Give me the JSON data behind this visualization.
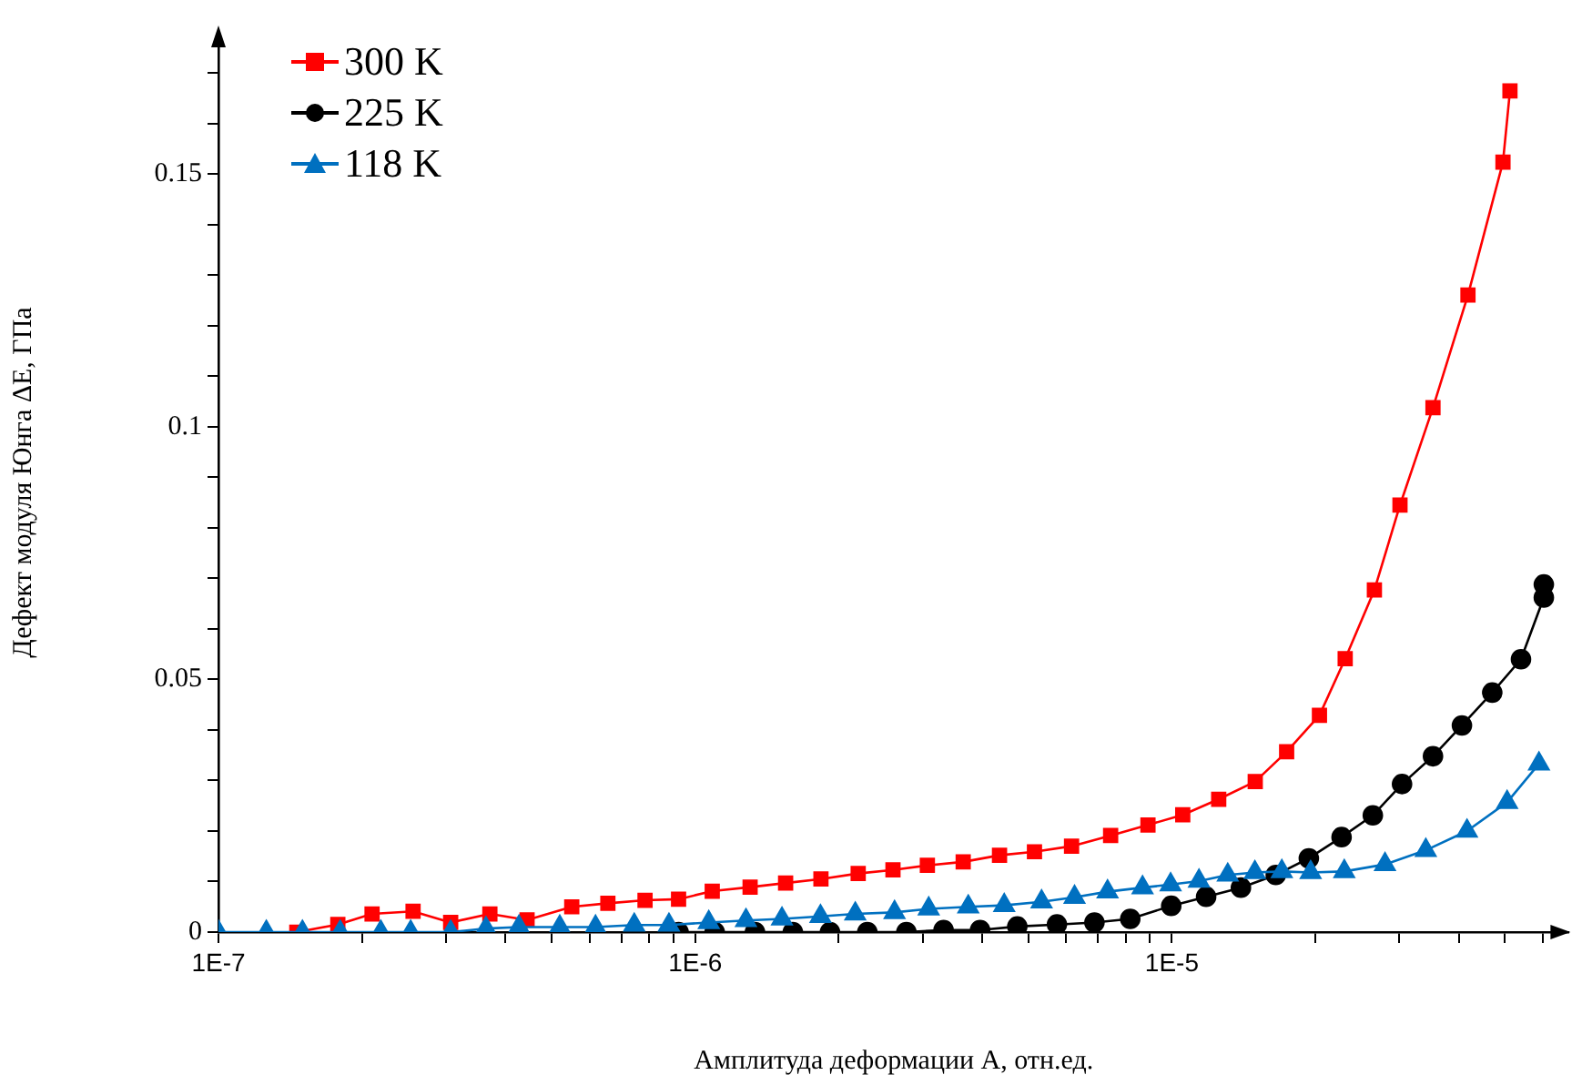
{
  "chart_data": {
    "type": "line",
    "xlabel": "Амплитуда деформации A, отн.ед.",
    "ylabel": "Дефект модуля Юнга ΔE, ГПа",
    "log": "x",
    "grid": false,
    "legend": "top left",
    "line_style": "solid",
    "xlim": [
      1e-07,
      6.8e-05
    ],
    "ylim": [
      0,
      0.178
    ],
    "xticks": [
      {
        "value": 1e-07,
        "label": "1E-7"
      },
      {
        "value": 2e-07,
        "label": null
      },
      {
        "value": 3e-07,
        "label": null
      },
      {
        "value": 4e-07,
        "label": null
      },
      {
        "value": 5e-07,
        "label": null
      },
      {
        "value": 6e-07,
        "label": null
      },
      {
        "value": 7e-07,
        "label": null
      },
      {
        "value": 8e-07,
        "label": null
      },
      {
        "value": 9e-07,
        "label": null
      },
      {
        "value": 1e-06,
        "label": "1E-6"
      },
      {
        "value": 2e-06,
        "label": null
      },
      {
        "value": 3e-06,
        "label": null
      },
      {
        "value": 4e-06,
        "label": null
      },
      {
        "value": 5e-06,
        "label": null
      },
      {
        "value": 6e-06,
        "label": null
      },
      {
        "value": 7e-06,
        "label": null
      },
      {
        "value": 8e-06,
        "label": null
      },
      {
        "value": 9e-06,
        "label": null
      },
      {
        "value": 1e-05,
        "label": "1E-5"
      },
      {
        "value": 2e-05,
        "label": null
      },
      {
        "value": 3e-05,
        "label": null
      },
      {
        "value": 4e-05,
        "label": null
      },
      {
        "value": 5e-05,
        "label": null
      },
      {
        "value": 6e-05,
        "label": null
      }
    ],
    "yticks": [
      0,
      {
        "value": 0.01,
        "label": null
      },
      {
        "value": 0.02,
        "label": null
      },
      {
        "value": 0.03,
        "label": null
      },
      {
        "value": 0.04,
        "label": null
      },
      0.05,
      {
        "value": 0.06,
        "label": null
      },
      {
        "value": 0.07,
        "label": null
      },
      {
        "value": 0.08,
        "label": null
      },
      {
        "value": 0.09,
        "label": null
      },
      {
        "value": 0.1,
        "label": "0.1"
      },
      {
        "value": 0.11,
        "label": null
      },
      {
        "value": 0.12,
        "label": null
      },
      {
        "value": 0.13,
        "label": null
      },
      {
        "value": 0.14,
        "label": null
      },
      0.15,
      {
        "value": 0.16,
        "label": null
      },
      {
        "value": 0.17,
        "label": null
      }
    ],
    "series": [
      {
        "name": "300 K",
        "color": "#ff0000",
        "marker": "square",
        "x": [
          1.46e-07,
          1.78e-07,
          2.1e-07,
          2.56e-07,
          3.07e-07,
          3.71e-07,
          4.44e-07,
          5.51e-07,
          6.56e-07,
          7.85e-07,
          9.23e-07,
          1.086e-06,
          1.304e-06,
          1.548e-06,
          1.836e-06,
          2.198e-06,
          2.6e-06,
          3.07e-06,
          3.65e-06,
          4.35e-06,
          5.15e-06,
          6.16e-06,
          7.44e-06,
          8.91e-06,
          1.054e-05,
          1.254e-05,
          1.496e-05,
          1.741e-05,
          2.04e-05,
          2.31e-05,
          2.66e-05,
          3.01e-05,
          3.53e-05,
          4.18e-05,
          4.95e-05,
          5.12e-05
        ],
        "values": [
          0,
          0.0015,
          0.0036,
          0.0041,
          0.0019,
          0.0036,
          0.0024,
          0.005,
          0.0057,
          0.0063,
          0.0065,
          0.0081,
          0.0089,
          0.0097,
          0.0105,
          0.0116,
          0.0123,
          0.0132,
          0.0139,
          0.0152,
          0.0159,
          0.017,
          0.0191,
          0.0212,
          0.0232,
          0.0263,
          0.0298,
          0.0357,
          0.0429,
          0.0541,
          0.0677,
          0.0845,
          0.1038,
          0.1261,
          0.1524,
          0.1665
        ]
      },
      {
        "name": "225 K",
        "color": "#000000",
        "marker": "circle",
        "x": [
          9.23e-07,
          1.099e-06,
          1.335e-06,
          1.603e-06,
          1.918e-06,
          2.297e-06,
          2.774e-06,
          3.32e-06,
          3.96e-06,
          4.74e-06,
          5.74e-06,
          6.88e-06,
          8.18e-06,
          9.97e-06,
          1.18e-05,
          1.396e-05,
          1.652e-05,
          1.938e-05,
          2.27e-05,
          2.64e-05,
          3.04e-05,
          3.53e-05,
          4.06e-05,
          4.7e-05,
          5.4e-05,
          6.03e-05,
          6.03e-05
        ],
        "values": [
          0,
          0,
          0,
          0,
          0,
          0,
          0,
          0.0004,
          0.0004,
          0.0011,
          0.0015,
          0.0019,
          0.0026,
          0.0052,
          0.007,
          0.0088,
          0.0113,
          0.0146,
          0.0188,
          0.0231,
          0.0293,
          0.0348,
          0.0409,
          0.0474,
          0.054,
          0.0662,
          0.0688
        ]
      },
      {
        "name": "118 K",
        "color": "#0070c0",
        "marker": "triangle",
        "x": [
          1e-07,
          1.26e-07,
          1.5e-07,
          1.8e-07,
          2.19e-07,
          2.53e-07,
          3.07e-07,
          3.64e-07,
          4.27e-07,
          5.2e-07,
          6.18e-07,
          7.45e-07,
          8.81e-07,
          1.068e-06,
          1.278e-06,
          1.521e-06,
          1.832e-06,
          2.167e-06,
          2.62e-06,
          3.09e-06,
          3.74e-06,
          4.45e-06,
          5.33e-06,
          6.25e-06,
          7.33e-06,
          8.68e-06,
          9.94e-06,
          1.14e-05,
          1.31e-05,
          1.493e-05,
          1.701e-05,
          1.955e-05,
          2.3e-05,
          2.8e-05,
          3.41e-05,
          4.16e-05,
          5.05e-05,
          5.89e-05
        ],
        "values": [
          0,
          0,
          0,
          0,
          0,
          0,
          0,
          0.0007,
          0.001,
          0.001,
          0.001,
          0.0014,
          0.0014,
          0.0019,
          0.0023,
          0.0026,
          0.0031,
          0.0036,
          0.0039,
          0.0046,
          0.005,
          0.0053,
          0.006,
          0.0069,
          0.008,
          0.0088,
          0.0094,
          0.0101,
          0.0113,
          0.0118,
          0.012,
          0.0118,
          0.012,
          0.0134,
          0.0162,
          0.02,
          0.0257,
          0.0333
        ]
      }
    ]
  }
}
